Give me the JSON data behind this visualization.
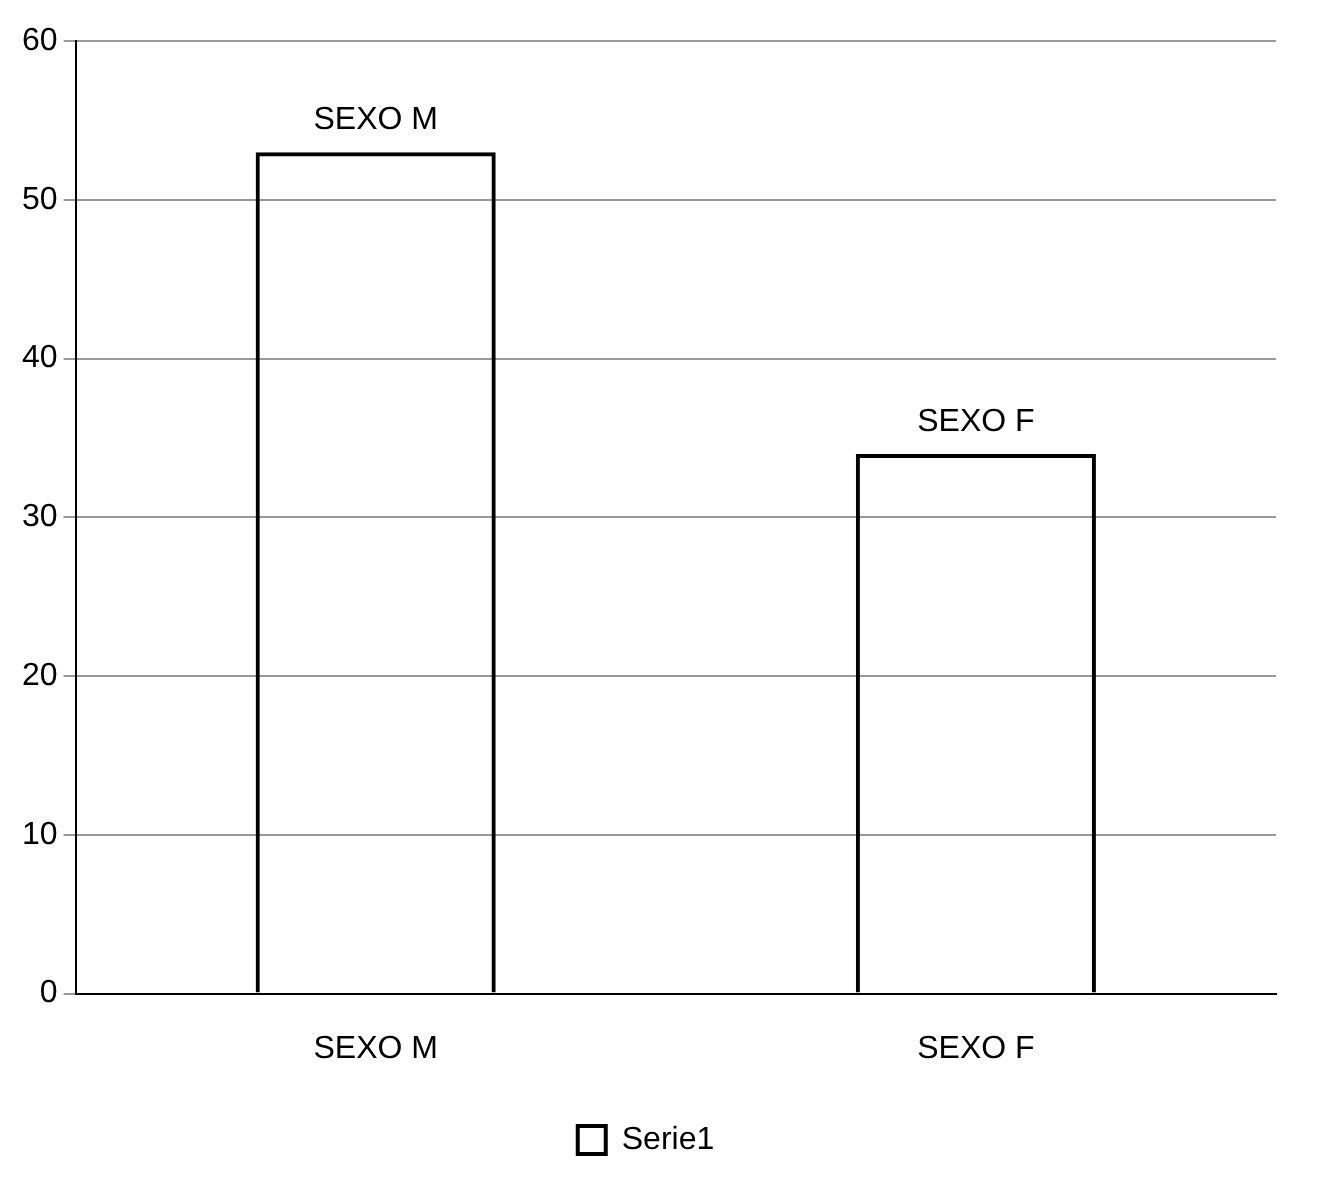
{
  "chart_data": {
    "type": "bar",
    "categories": [
      "SEXO M",
      "SEXO F"
    ],
    "series": [
      {
        "name": "Serie1",
        "color": "#000000",
        "values": [
          53,
          34
        ]
      }
    ],
    "ylim": [
      0,
      60
    ],
    "yticks": [
      0,
      10,
      20,
      30,
      40,
      50,
      60
    ],
    "grid": "y",
    "legend": "bottom",
    "annotations": [
      {
        "text": "SEXO M",
        "x": "SEXO M",
        "y": 53
      },
      {
        "text": "SEXO F",
        "x": "SEXO F",
        "y": 34
      }
    ]
  }
}
